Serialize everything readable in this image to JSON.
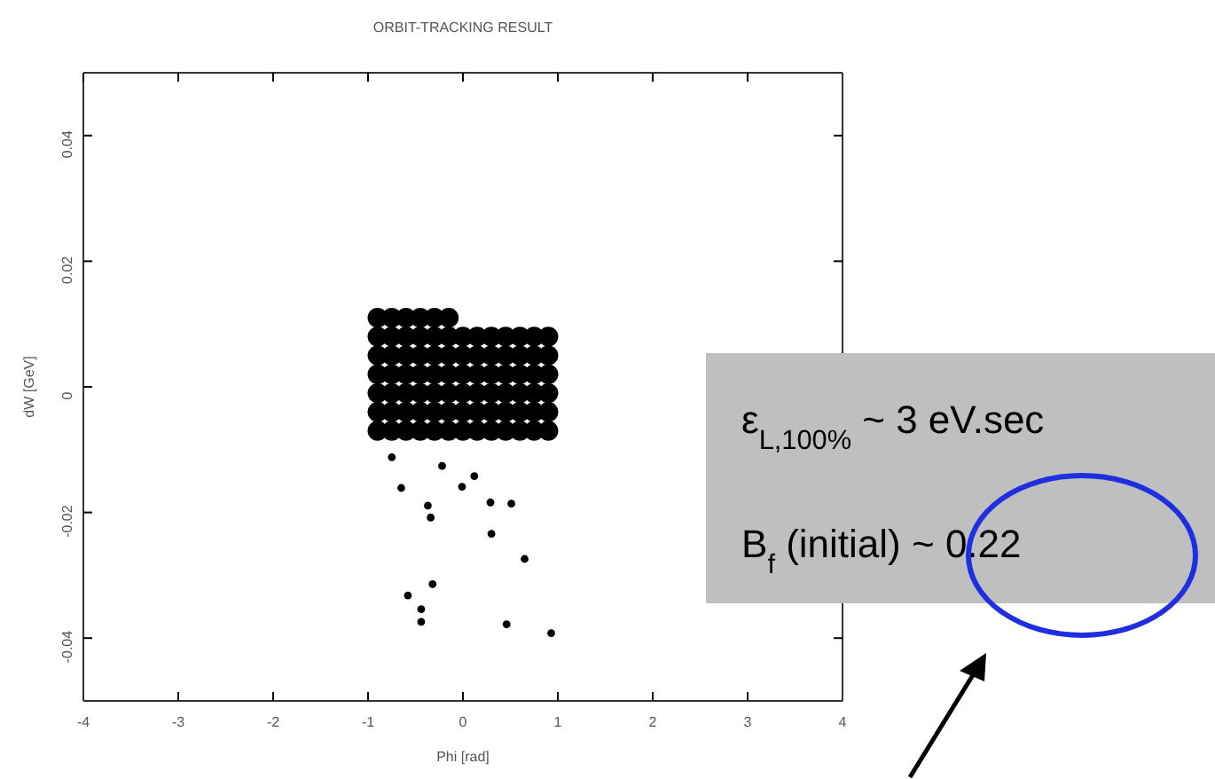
{
  "chart_data": {
    "type": "scatter",
    "title": "ORBIT-TRACKING RESULT",
    "xlabel": "Phi [rad]",
    "ylabel": "dW [GeV]",
    "xlim": [
      -4,
      4
    ],
    "xticks": [
      {
        "value": -4,
        "label": "-4"
      },
      {
        "value": -3,
        "label": "-3"
      },
      {
        "value": -2,
        "label": "-2"
      },
      {
        "value": -1,
        "label": "-1"
      },
      0,
      1,
      2,
      3,
      4
    ],
    "ylim": [
      -0.05,
      0.05
    ],
    "yticks": [
      -0.04,
      -0.02,
      0,
      0.02,
      0.04
    ],
    "grid": false,
    "marker": "circle",
    "annotations": [
      "ε$_{L,100%}$ ~ 3 eV.sec",
      "B$_{f}$ (initial) ~ 0.22"
    ],
    "series": [
      {
        "color": "#000000",
        "x": [
          -0.9,
          -0.75,
          -0.6,
          -0.45,
          -0.3,
          -0.15,
          -0.9,
          -0.75,
          -0.6,
          -0.45,
          -0.3,
          -0.15,
          0,
          0.15,
          0.3,
          0.45,
          0.6,
          0.75,
          0.9,
          -0.9,
          -0.75,
          -0.6,
          -0.45,
          -0.3,
          -0.15,
          0,
          0.15,
          0.3,
          0.45,
          0.6,
          0.75,
          0.9,
          -0.9,
          -0.75,
          -0.6,
          -0.45,
          -0.3,
          -0.15,
          0,
          0.15,
          0.3,
          0.45,
          0.6,
          0.75,
          0.9,
          -0.9,
          -0.75,
          -0.6,
          -0.45,
          -0.3,
          -0.15,
          0,
          0.15,
          0.3,
          0.45,
          0.6,
          0.75,
          0.9,
          -0.9,
          -0.75,
          -0.6,
          -0.45,
          -0.3,
          -0.15,
          0,
          0.15,
          0.3,
          0.45,
          0.6,
          0.75,
          0.9,
          -0.9,
          -0.75,
          -0.6,
          -0.45,
          -0.3,
          -0.15,
          0,
          0.15,
          0.3,
          0.45,
          0.6,
          0.75,
          0.9
        ],
        "values": [
          0.011,
          0.011,
          0.011,
          0.011,
          0.011,
          0.011,
          0.008,
          0.008,
          0.008,
          0.008,
          0.008,
          0.008,
          0.008,
          0.008,
          0.008,
          0.008,
          0.008,
          0.008,
          0.008,
          0.005,
          0.005,
          0.005,
          0.005,
          0.005,
          0.005,
          0.005,
          0.005,
          0.005,
          0.005,
          0.005,
          0.005,
          0.005,
          0.002,
          0.002,
          0.002,
          0.002,
          0.002,
          0.002,
          0.002,
          0.002,
          0.002,
          0.002,
          0.002,
          0.002,
          0.002,
          -0.001,
          -0.001,
          -0.001,
          -0.001,
          -0.001,
          -0.001,
          -0.001,
          -0.001,
          -0.001,
          -0.001,
          -0.001,
          -0.001,
          -0.001,
          -0.004,
          -0.004,
          -0.004,
          -0.004,
          -0.004,
          -0.004,
          -0.004,
          -0.004,
          -0.004,
          -0.004,
          -0.004,
          -0.004,
          -0.004,
          -0.007,
          -0.007,
          -0.007,
          -0.007,
          -0.007,
          -0.007,
          -0.007,
          -0.007,
          -0.007,
          -0.007,
          -0.007,
          -0.007,
          -0.007
        ]
      },
      {
        "color": "#000000",
        "x": [
          -0.75,
          -0.22,
          0.12,
          -0.65,
          -0.01,
          -0.37,
          -0.34,
          0.29,
          0.51,
          0.3,
          0.65,
          -0.32,
          -0.58,
          -0.44,
          -0.44,
          0.46,
          0.93
        ],
        "values": [
          -0.0112,
          -0.0126,
          -0.0142,
          -0.0161,
          -0.0159,
          -0.0189,
          -0.0208,
          -0.0184,
          -0.0186,
          -0.0234,
          -0.0274,
          -0.0314,
          -0.0332,
          -0.0354,
          -0.0374,
          -0.0378,
          -0.0392
        ]
      }
    ]
  }
}
